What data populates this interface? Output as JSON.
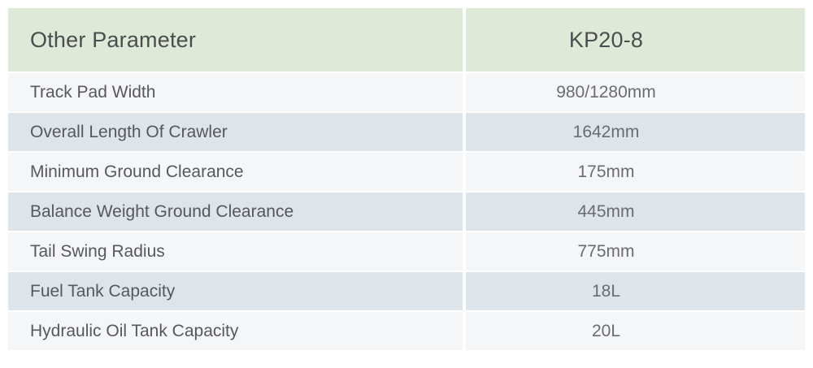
{
  "colors": {
    "header_bg": "#dfe9d7",
    "header_text": "#4c4d4f",
    "row_light_bg": "#f5f6f8",
    "row_alt_bg": "#dde4ea",
    "label_text": "#57585b",
    "value_text": "#6b6c6f"
  },
  "table": {
    "header": {
      "parameter": "Other Parameter",
      "model": "KP20-8"
    },
    "rows": [
      {
        "label": "Track Pad Width",
        "value": "980/1280mm"
      },
      {
        "label": "Overall Length Of Crawler",
        "value": "1642mm"
      },
      {
        "label": "Minimum Ground Clearance",
        "value": "175mm"
      },
      {
        "label": "Balance Weight Ground Clearance",
        "value": "445mm"
      },
      {
        "label": "Tail Swing Radius",
        "value": "775mm"
      },
      {
        "label": "Fuel Tank Capacity",
        "value": "18L"
      },
      {
        "label": "Hydraulic Oil Tank Capacity",
        "value": "20L"
      }
    ]
  }
}
